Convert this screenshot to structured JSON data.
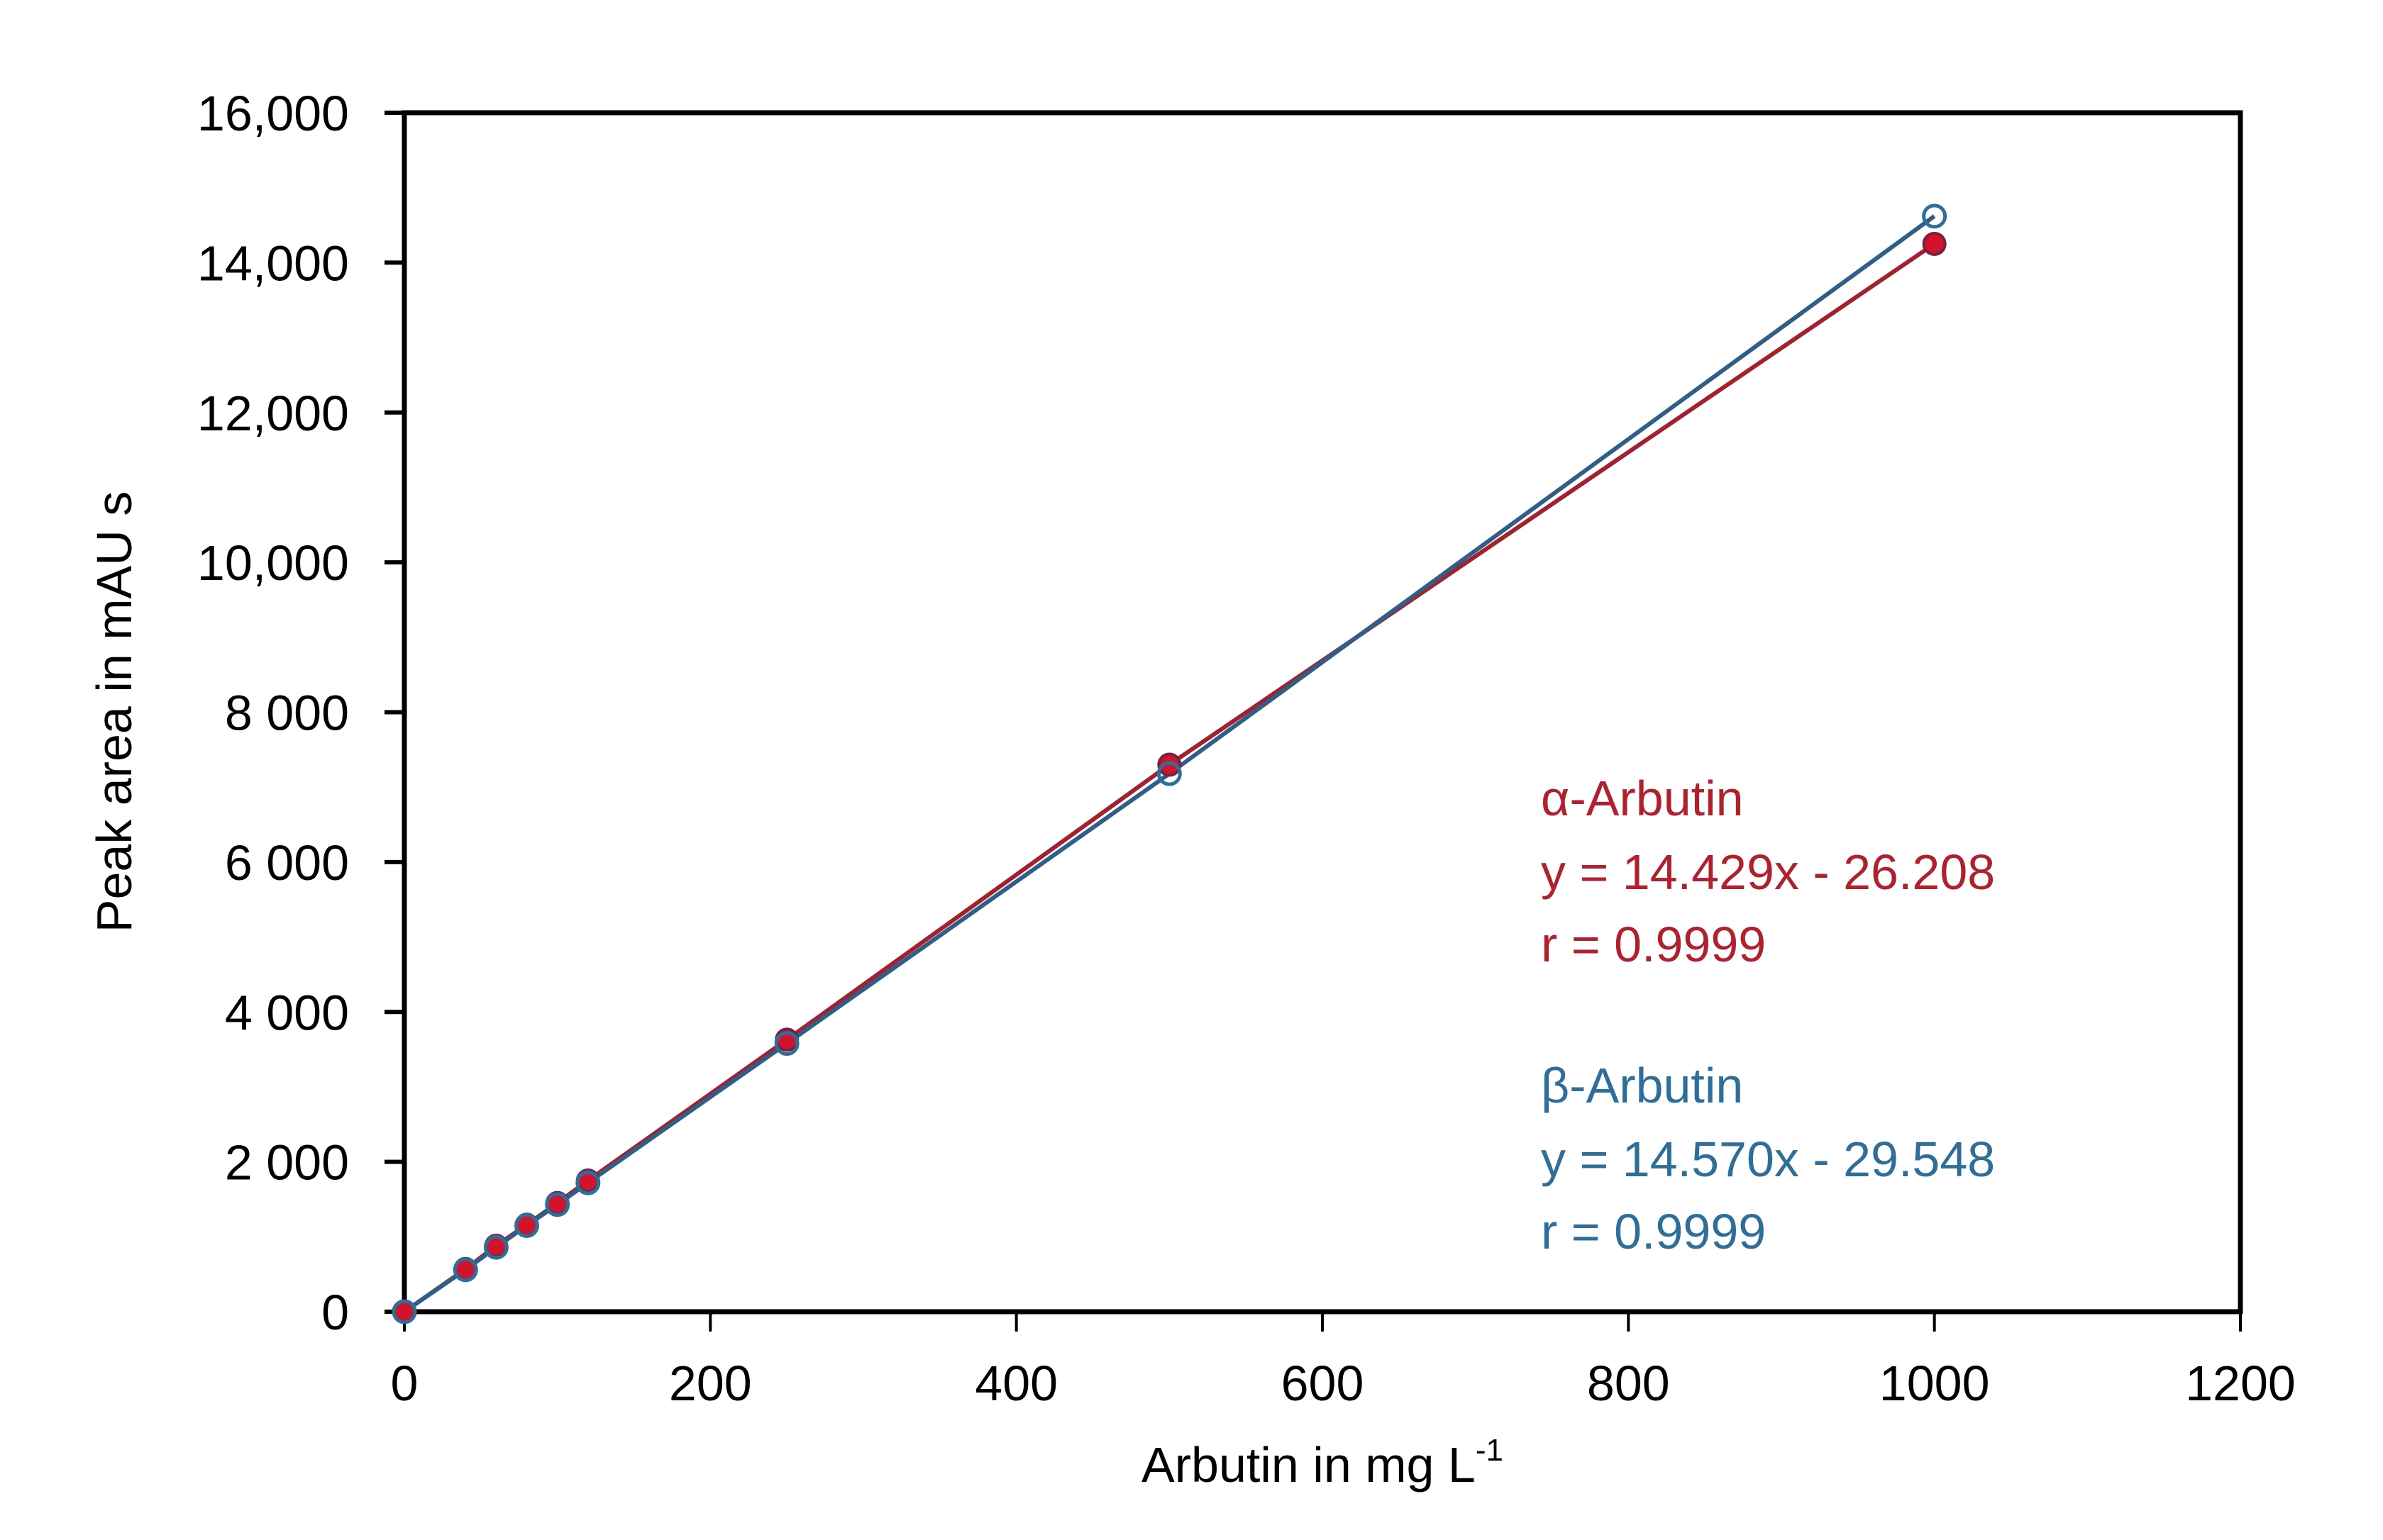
{
  "chart_data": {
    "type": "scatter",
    "title": "",
    "xlabel": "Arbutin in mg L",
    "xlabel_superscript": "-1",
    "ylabel": "Peak area in mAU s",
    "xlim": [
      0,
      1200
    ],
    "ylim": [
      0,
      16000
    ],
    "grid": false,
    "legend_position": "none (inline annotations, lower right)",
    "x_ticks": [
      0,
      200,
      400,
      600,
      800,
      1000,
      1200
    ],
    "x_tick_labels": [
      "0",
      "200",
      "400",
      "600",
      "800",
      "1000",
      "1200"
    ],
    "y_ticks": [
      0,
      2000,
      4000,
      6000,
      8000,
      10000,
      12000,
      14000,
      16000
    ],
    "y_tick_labels": [
      "0",
      "2 000",
      "4 000",
      "6 000",
      "8 000",
      "10,000",
      "12,000",
      "14,000",
      "16,000"
    ],
    "x": [
      0,
      40,
      60,
      80,
      100,
      120,
      250,
      500,
      1000
    ],
    "series": [
      {
        "name": "α-Arbutin",
        "marker": "filled circle",
        "color": "#d0142c",
        "line_color": "#a3202f",
        "values": [
          0,
          570,
          880,
          1160,
          1450,
          1750,
          3630,
          7300,
          14250
        ],
        "fit": {
          "equation": "y = 14.429x - 26.208",
          "slope": 14.429,
          "intercept": -26.208,
          "r": 0.9999
        }
      },
      {
        "name": "β-Arbutin",
        "marker": "open circle",
        "color": "#2e6e9a",
        "line_color": "#2f5f88",
        "values": [
          0,
          560,
          860,
          1150,
          1430,
          1720,
          3580,
          7180,
          14620
        ],
        "fit": {
          "equation": "y = 14.570x - 29.548",
          "slope": 14.57,
          "intercept": -29.548,
          "r": 0.9999
        }
      }
    ],
    "annotations": [
      {
        "label": "α-Arbutin",
        "equation": "y = 14.429x - 26.208",
        "r": "r = 0.9999",
        "color": "#b0212e"
      },
      {
        "label": "β-Arbutin",
        "equation": "y = 14.570x - 29.548",
        "r": "r = 0.9999",
        "color": "#2e6e9a"
      }
    ]
  },
  "labels": {
    "x_axis_title": "Arbutin in mg L",
    "x_axis_title_sup": "-1",
    "y_axis_title": "Peak area in mAU s",
    "alpha_name": "α-Arbutin",
    "alpha_eq": "y = 14.429x - 26.208",
    "alpha_r": "r = 0.9999",
    "beta_name": "β-Arbutin",
    "beta_eq": "y = 14.570x - 29.548",
    "beta_r": "r = 0.9999"
  }
}
